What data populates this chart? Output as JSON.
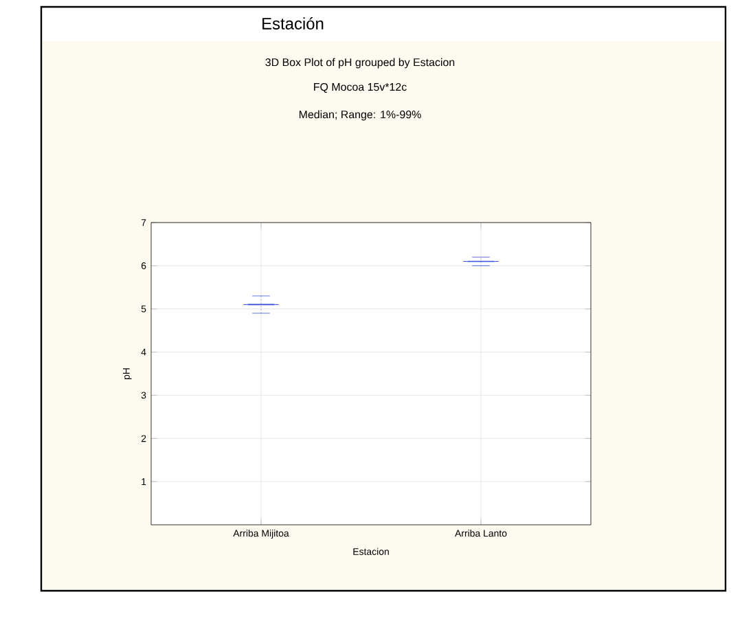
{
  "chart_data": {
    "type": "box",
    "title": "Estación",
    "subtitle": "3D Box Plot of pH grouped by  Estacion",
    "annotations": [
      "FQ Mocoa 15v*12c",
      "Median; Range:  1%-99%"
    ],
    "xlabel": "Estacion",
    "ylabel": "pH",
    "categories": [
      "Arriba Mijitoa",
      "Arriba Lanto"
    ],
    "series": [
      {
        "color": "#3b4fd8",
        "boxes": [
          {
            "low": 4.9,
            "q1": 5.1,
            "median": 5.1,
            "q3": 5.1,
            "high": 5.3
          },
          {
            "low": 6.0,
            "q1": 6.1,
            "median": 6.1,
            "q3": 6.1,
            "high": 6.2
          }
        ]
      }
    ],
    "ylim": [
      0,
      7
    ],
    "yticks": [
      1,
      2,
      3,
      4,
      5,
      6,
      7
    ],
    "grid": true,
    "line_style": "dotted"
  }
}
